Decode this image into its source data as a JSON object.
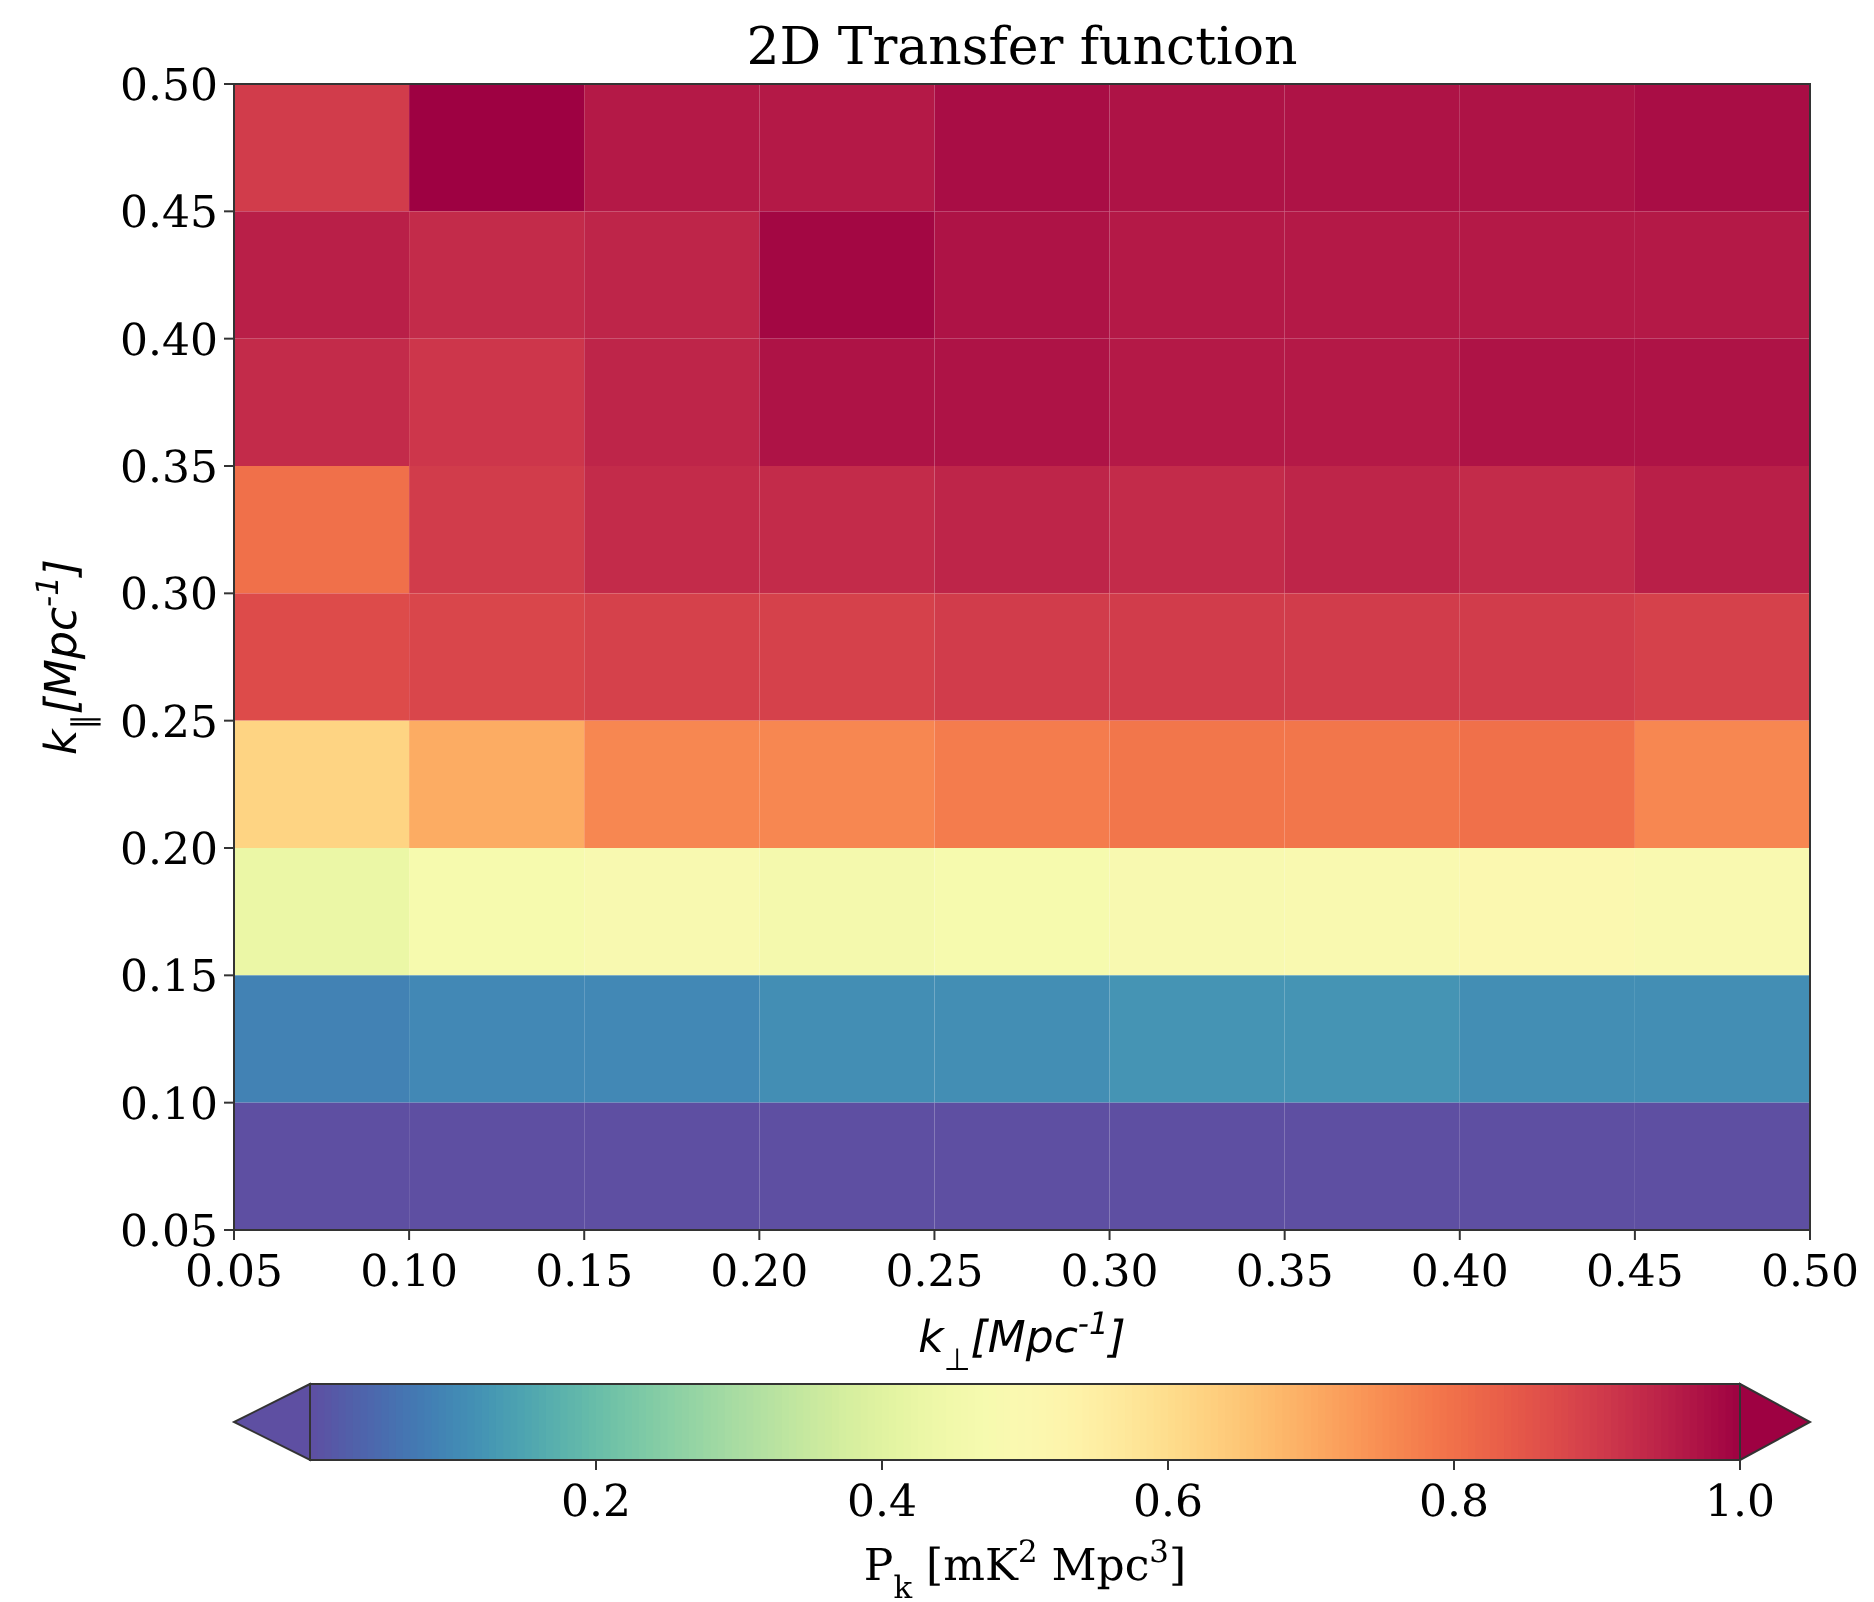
{
  "chart_data": {
    "type": "heatmap",
    "title": "2D Transfer function",
    "xlabel": "k$_{⊥}$[Mpc$^{-1}$]",
    "ylabel": "k$_{∥}$[Mpc$^{-1}$]",
    "clabel": "P$_{k}$ [mK$^{2}$ Mpc$^{3}$]",
    "xlim": [
      0.05,
      0.5
    ],
    "xticks": [
      0.05,
      {
        "value": 0.1,
        "label": "0.10"
      },
      0.15,
      {
        "value": 0.2,
        "label": "0.20"
      },
      0.25,
      {
        "value": 0.3,
        "label": "0.30"
      },
      0.35,
      {
        "value": 0.4,
        "label": "0.40"
      },
      0.45,
      {
        "value": 0.5,
        "label": "0.50"
      }
    ],
    "ylim": [
      0.05,
      0.5
    ],
    "yticks": [
      0.05,
      {
        "value": 0.1,
        "label": "0.10"
      },
      0.15,
      {
        "value": 0.2,
        "label": "0.20"
      },
      0.25,
      {
        "value": 0.3,
        "label": "0.30"
      },
      0.35,
      {
        "value": 0.4,
        "label": "0.40"
      },
      0.45,
      {
        "value": 0.5,
        "label": "0.50"
      }
    ],
    "clim": [
      0,
      1
    ],
    "cticks": [
      0.2,
      0.4,
      0.6,
      0.8,
      {
        "value": 1,
        "label": "1.0"
      }
    ],
    "cells": [
      [
        0.9,
        1.0,
        0.96,
        0.96,
        0.98,
        0.97,
        0.97,
        0.97,
        0.98
      ],
      [
        0.95,
        0.93,
        0.94,
        0.99,
        0.97,
        0.96,
        0.96,
        0.96,
        0.96
      ],
      [
        0.93,
        0.91,
        0.94,
        0.97,
        0.97,
        0.96,
        0.96,
        0.97,
        0.97
      ],
      [
        0.8,
        0.9,
        0.93,
        0.93,
        0.94,
        0.93,
        0.94,
        0.93,
        0.95
      ],
      [
        0.87,
        0.88,
        0.89,
        0.89,
        0.9,
        0.9,
        0.9,
        0.9,
        0.89
      ],
      [
        0.62,
        0.7,
        0.76,
        0.76,
        0.78,
        0.79,
        0.79,
        0.8,
        0.76
      ],
      [
        0.43,
        0.47,
        0.48,
        0.46,
        0.47,
        0.48,
        0.49,
        0.5,
        0.49
      ],
      [
        0.09,
        0.1,
        0.1,
        0.11,
        0.11,
        0.12,
        0.12,
        0.11,
        0.11
      ],
      [
        0.0,
        0.0,
        0.0,
        0.0,
        0.0,
        0.0,
        0.0,
        0.0,
        0.0
      ]
    ]
  }
}
